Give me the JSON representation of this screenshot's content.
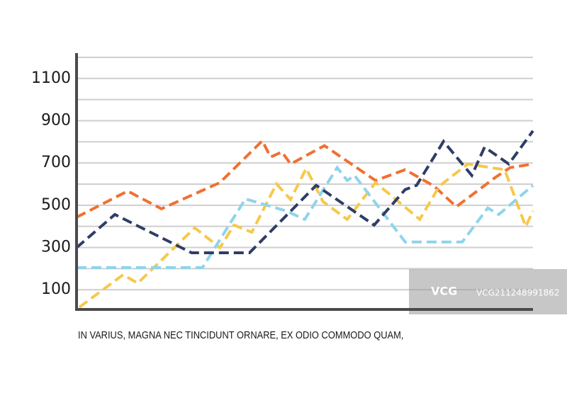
{
  "chart_data": {
    "type": "line",
    "caption": "IN VARIUS, MAGNA NEC TINCIDUNT ORNARE, EX ODIO COMMODO QUAM,",
    "xlim": [
      0,
      100
    ],
    "ylim": [
      0,
      1220
    ],
    "yticks": [
      100,
      300,
      500,
      700,
      900,
      1100
    ],
    "minor_yticks": [
      200,
      400,
      600,
      800,
      1000,
      1200
    ],
    "grid": true,
    "line_style": "dashed",
    "series": [
      {
        "color": "#f07032",
        "x": [
          0,
          11.2,
          18.6,
          31.4,
          40.7,
          42.5,
          45.0,
          46.9,
          54.3,
          65.5,
          72.0,
          78.3,
          83.2,
          91.9,
          95.0,
          100
        ],
        "values": [
          443,
          567,
          483,
          607,
          805,
          728,
          752,
          695,
          782,
          617,
          668,
          591,
          493,
          634,
          678,
          695
        ]
      },
      {
        "color": "#f6c84c",
        "x": [
          0.6,
          10.2,
          13.4,
          25.9,
          31.4,
          34.5,
          38.4,
          43.8,
          46.9,
          50.3,
          54.0,
          59.3,
          65.5,
          75.2,
          79.5,
          85.7,
          93.8,
          98.4,
          100
        ],
        "values": [
          17,
          171,
          131,
          393,
          299,
          406,
          372,
          601,
          527,
          674,
          517,
          433,
          607,
          433,
          591,
          695,
          668,
          399,
          473
        ]
      },
      {
        "color": "#8fd4ea",
        "x": [
          0,
          27.6,
          37.0,
          45.9,
          50.0,
          57.1,
          59.3,
          60.9,
          72.0,
          84.5,
          90.1,
          92.5,
          100
        ],
        "values": [
          205,
          205,
          530,
          473,
          433,
          678,
          617,
          641,
          326,
          326,
          487,
          456,
          594
        ]
      },
      {
        "color": "#2f3d66",
        "x": [
          0,
          8.4,
          25.2,
          37.9,
          52.5,
          65.2,
          72.0,
          74.5,
          80.4,
          86.6,
          89.4,
          94.7,
          100
        ],
        "values": [
          299,
          456,
          275,
          275,
          594,
          406,
          574,
          594,
          802,
          641,
          775,
          695,
          852
        ]
      }
    ]
  },
  "watermark": {
    "logo": "VCG",
    "id": "VCG211248991862"
  }
}
